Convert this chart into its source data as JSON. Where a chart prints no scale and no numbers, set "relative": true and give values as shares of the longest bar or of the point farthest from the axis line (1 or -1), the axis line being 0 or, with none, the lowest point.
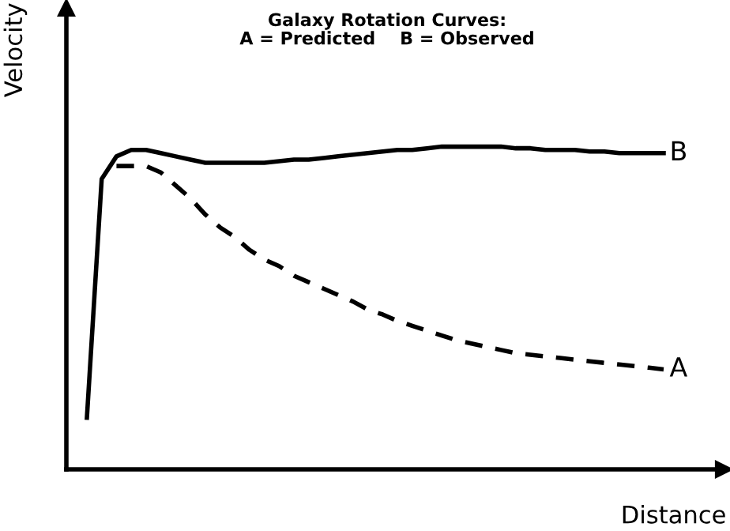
{
  "chart_data": {
    "type": "line",
    "title": "Galaxy Rotation Curves:\nA = Predicted    B = Observed",
    "xlabel": "Distance",
    "ylabel": "Velocity",
    "relative": true,
    "legend": false,
    "grid": false,
    "marker": "none",
    "categories": [
      null,
      null,
      null,
      null,
      null,
      null,
      null,
      null,
      null,
      null,
      null,
      null,
      null,
      null,
      null,
      null,
      null,
      null,
      null,
      null,
      null,
      null,
      null,
      null,
      null,
      null,
      null,
      null,
      null,
      null,
      null,
      null,
      null,
      null,
      null,
      null,
      null,
      null,
      null,
      null
    ],
    "series": [
      {
        "name": "B",
        "color": "#000000",
        "line_style": "solid",
        "values": [
          0.16,
          0.9,
          0.97,
          0.99,
          0.99,
          0.98,
          0.97,
          0.96,
          0.95,
          0.95,
          0.95,
          0.95,
          0.95,
          0.955,
          0.96,
          0.96,
          0.965,
          0.97,
          0.975,
          0.98,
          0.985,
          0.99,
          0.99,
          0.995,
          1.0,
          1.0,
          1.0,
          1.0,
          1.0,
          0.995,
          0.995,
          0.99,
          0.99,
          0.99,
          0.985,
          0.985,
          0.98,
          0.98,
          0.98,
          0.98
        ]
      },
      {
        "name": "A",
        "color": "#000000",
        "line_style": "dashed",
        "values": [
          null,
          null,
          0.94,
          0.94,
          0.94,
          0.92,
          0.88,
          0.84,
          0.79,
          0.75,
          0.72,
          0.68,
          0.65,
          0.63,
          0.6,
          0.58,
          0.56,
          0.54,
          0.52,
          0.495,
          0.48,
          0.46,
          0.445,
          0.43,
          0.415,
          0.4,
          0.39,
          0.38,
          0.37,
          0.36,
          0.355,
          0.35,
          0.345,
          0.34,
          0.335,
          0.33,
          0.325,
          0.32,
          0.315,
          0.31
        ]
      }
    ]
  }
}
